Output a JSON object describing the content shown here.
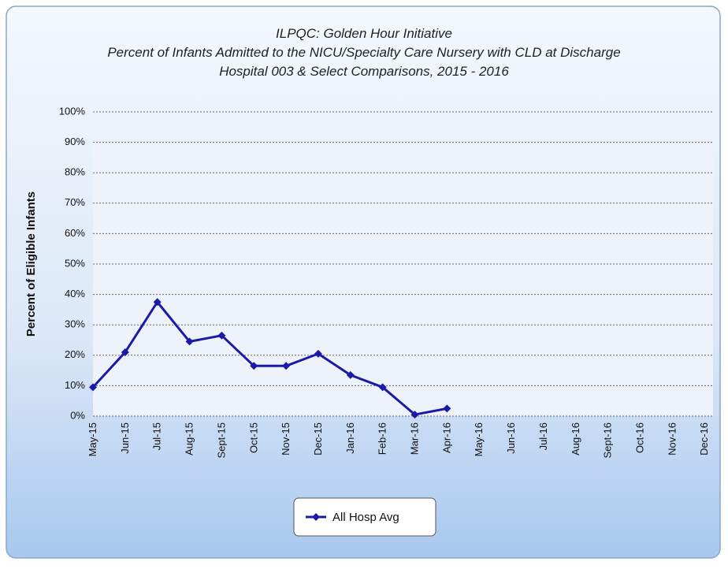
{
  "chart_data": {
    "type": "line",
    "title": [
      "ILPQC: Golden Hour Initiative",
      "Percent of Infants Admitted to the NICU/Specialty Care Nursery with CLD at Discharge",
      "Hospital 003 & Select Comparisons, 2015 - 2016"
    ],
    "ylabel": "Percent of Eligible Infants",
    "categories": [
      "May-15",
      "Jun-15",
      "Jul-15",
      "Aug-15",
      "Sept-15",
      "Oct-15",
      "Nov-15",
      "Dec-15",
      "Jan-16",
      "Feb-16",
      "Mar-16",
      "Apr-16",
      "May-16",
      "Jun-16",
      "Jul-16",
      "Aug-16",
      "Sept-16",
      "Oct-16",
      "Nov-16",
      "Dec-16"
    ],
    "series": [
      {
        "name": "All Hosp Avg",
        "color": "#1a1aa6",
        "values": [
          9.5,
          21,
          37.5,
          24.5,
          26.5,
          16.5,
          16.5,
          20.5,
          13.5,
          9.5,
          0.5,
          2.5,
          null,
          null,
          null,
          null,
          null,
          null,
          null,
          null
        ]
      }
    ],
    "ylim": [
      0,
      100
    ],
    "yticks": [
      {
        "value": 0,
        "label": "0%"
      },
      {
        "value": 10,
        "label": "10%"
      },
      {
        "value": 20,
        "label": "20%"
      },
      {
        "value": 30,
        "label": "30%"
      },
      {
        "value": 40,
        "label": "40%"
      },
      {
        "value": 50,
        "label": "50%"
      },
      {
        "value": 60,
        "label": "60%"
      },
      {
        "value": 70,
        "label": "70%"
      },
      {
        "value": 80,
        "label": "80%"
      },
      {
        "value": 90,
        "label": "90%"
      },
      {
        "value": 100,
        "label": "100%"
      }
    ],
    "grid": true
  }
}
